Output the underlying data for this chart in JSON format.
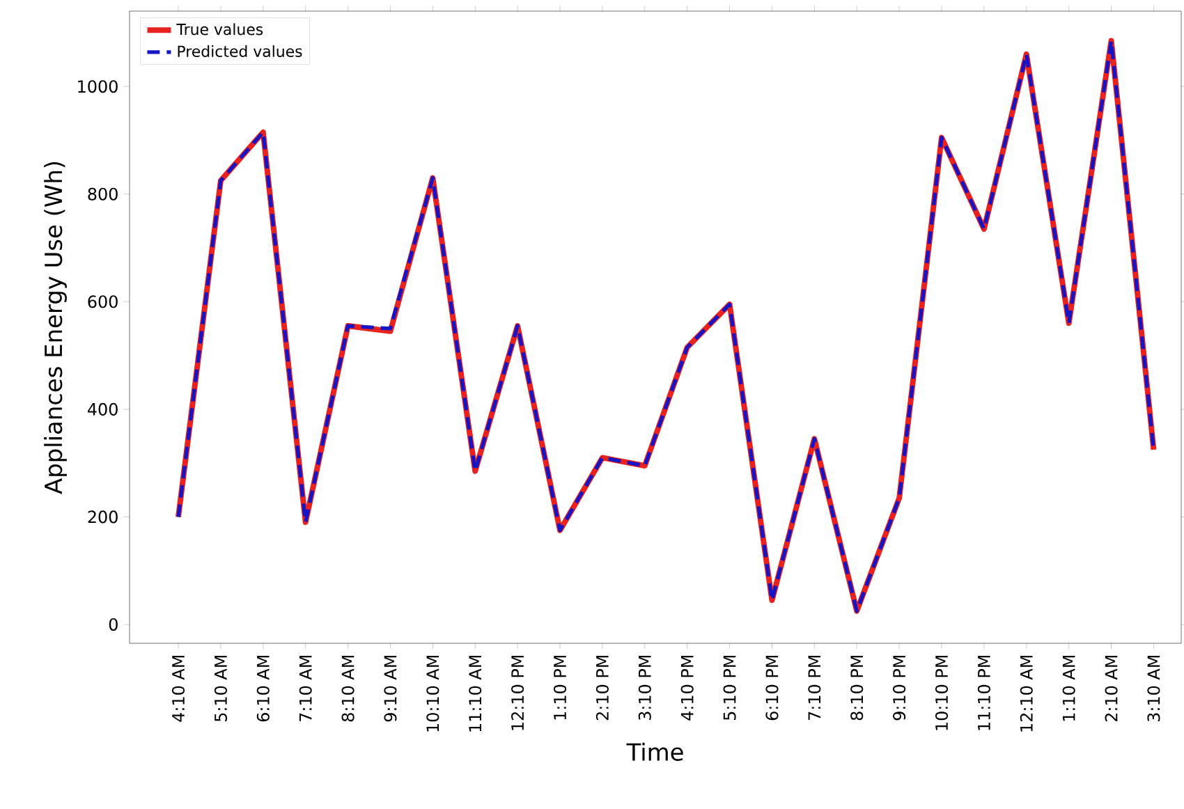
{
  "chart_data": {
    "type": "line",
    "xlabel": "Time",
    "ylabel": "Appliances Energy Use (Wh)",
    "categories": [
      "4:10 AM",
      "5:10 AM",
      "6:10 AM",
      "7:10 AM",
      "8:10 AM",
      "9:10 AM",
      "10:10 AM",
      "11:10 AM",
      "12:10 PM",
      "1:10 PM",
      "2:10 PM",
      "3:10 PM",
      "4:10 PM",
      "5:10 PM",
      "6:10 PM",
      "7:10 PM",
      "8:10 PM",
      "9:10 PM",
      "10:10 PM",
      "11:10 PM",
      "12:10 AM",
      "1:10 AM",
      "2:10 AM",
      "3:10 AM"
    ],
    "series": [
      {
        "name": "True values",
        "color": "#e8221f",
        "line_style": "solid",
        "values": [
          200,
          825,
          915,
          190,
          555,
          545,
          830,
          285,
          555,
          175,
          310,
          295,
          515,
          595,
          45,
          345,
          25,
          235,
          905,
          735,
          1060,
          560,
          1085,
          325
        ]
      },
      {
        "name": "Predicted values",
        "color": "#1515c8",
        "line_style": "dashed",
        "values": [
          200,
          825,
          915,
          190,
          555,
          550,
          830,
          285,
          555,
          175,
          310,
          295,
          515,
          595,
          45,
          345,
          25,
          235,
          905,
          735,
          1060,
          560,
          1085,
          325
        ]
      }
    ],
    "ylim": [
      -35,
      1140
    ],
    "yticks": [
      0,
      200,
      400,
      600,
      800,
      1000
    ],
    "legend": "top left",
    "grid": false,
    "marker": "none"
  }
}
